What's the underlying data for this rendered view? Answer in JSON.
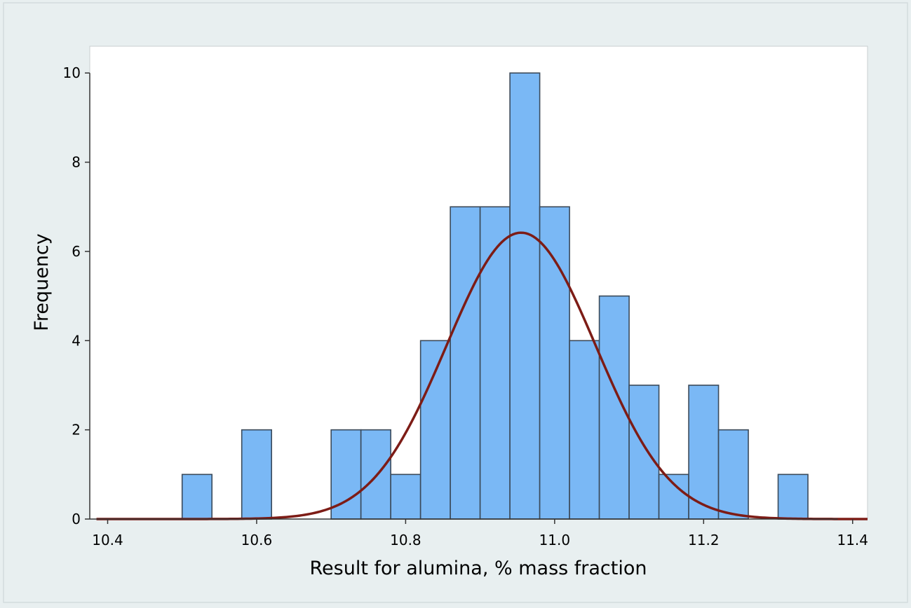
{
  "chart_data": {
    "type": "bar",
    "title": "",
    "xlabel": "Result for alumina, % mass fraction",
    "ylabel": "Frequency",
    "xlim": [
      10.376,
      11.42
    ],
    "ylim": [
      0,
      10.6
    ],
    "x_ticks": [
      10.4,
      10.6,
      10.8,
      11.0,
      11.2,
      11.4
    ],
    "x_tick_labels": [
      "10.4",
      "10.6",
      "10.8",
      "11.0",
      "11.2",
      "11.4"
    ],
    "y_ticks": [
      0,
      2,
      4,
      6,
      8,
      10
    ],
    "y_tick_labels": [
      "0",
      "2",
      "4",
      "6",
      "8",
      "10"
    ],
    "bin_width": 0.04,
    "bins": [
      {
        "start": 10.5,
        "end": 10.54,
        "count": 1
      },
      {
        "start": 10.58,
        "end": 10.62,
        "count": 2
      },
      {
        "start": 10.7,
        "end": 10.74,
        "count": 2
      },
      {
        "start": 10.74,
        "end": 10.78,
        "count": 2
      },
      {
        "start": 10.78,
        "end": 10.82,
        "count": 1
      },
      {
        "start": 10.82,
        "end": 10.86,
        "count": 4
      },
      {
        "start": 10.86,
        "end": 10.9,
        "count": 7
      },
      {
        "start": 10.9,
        "end": 10.94,
        "count": 7
      },
      {
        "start": 10.94,
        "end": 10.98,
        "count": 10
      },
      {
        "start": 10.98,
        "end": 11.02,
        "count": 7
      },
      {
        "start": 11.02,
        "end": 11.06,
        "count": 4
      },
      {
        "start": 11.06,
        "end": 11.1,
        "count": 5
      },
      {
        "start": 11.1,
        "end": 11.14,
        "count": 3
      },
      {
        "start": 11.14,
        "end": 11.18,
        "count": 1
      },
      {
        "start": 11.18,
        "end": 11.22,
        "count": 3
      },
      {
        "start": 11.22,
        "end": 11.26,
        "count": 2
      },
      {
        "start": 11.3,
        "end": 11.34,
        "count": 1
      }
    ],
    "fit_curve": {
      "type": "normal",
      "mean": 10.955,
      "sd": 0.1,
      "peak": 6.42,
      "x_range": [
        10.385,
        11.42
      ]
    },
    "grid": false,
    "legend": "none",
    "colors": {
      "background": "#e8eff0",
      "plot_area": "#ffffff",
      "bar_fill": "#7ab8f5",
      "bar_edge": "#3b4a5a",
      "curve": "#7d1c16"
    }
  }
}
